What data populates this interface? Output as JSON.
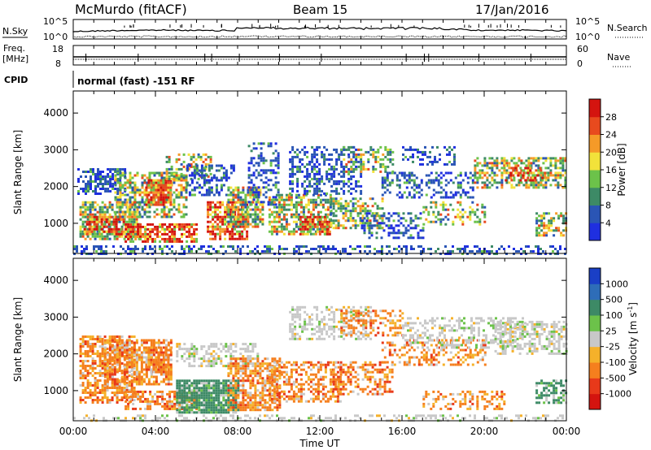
{
  "header": {
    "station": "McMurdo (fitACF)",
    "beam": "Beam 15",
    "date": "17/Jan/2016"
  },
  "summary_panels": {
    "nsky_label": "N.Sky",
    "nsky_ticks": [
      "10^5",
      "10^0"
    ],
    "nsearch_label": "N.Search",
    "nsearch_ticks": [
      "10^5",
      "10^0"
    ],
    "freq_label": "Freq.",
    "freq_unit": "[MHz]",
    "freq_ticks": [
      "18",
      "8"
    ],
    "nave_label": "Nave",
    "nave_ticks": [
      "60",
      "0"
    ],
    "cpid_label": "CPID",
    "cpid_text": "normal (fast) -151 RF"
  },
  "chart_data": [
    {
      "type": "heatmap",
      "name": "power-panel",
      "ylabel": "Slant Range [km]",
      "yticks": [
        "1000",
        "2000",
        "3000",
        "4000"
      ],
      "ylim": [
        180,
        4600
      ],
      "colorbar_label": "Power [dB]",
      "colorbar_ticks": [
        "4",
        "8",
        "12",
        "16",
        "20",
        "24",
        "28"
      ],
      "colors": [
        "#1f2fe0",
        "#2a55b5",
        "#3d8a66",
        "#6cc24a",
        "#f2e23a",
        "#f59a28",
        "#e84a1e",
        "#d4140f"
      ]
    },
    {
      "type": "heatmap",
      "name": "velocity-panel",
      "ylabel": "Slant Range [km]",
      "yticks": [
        "1000",
        "2000",
        "3000",
        "4000"
      ],
      "ylim": [
        180,
        4600
      ],
      "xlabel": "Time UT",
      "xticks": [
        "00:00",
        "04:00",
        "08:00",
        "12:00",
        "16:00",
        "20:00",
        "00:00"
      ],
      "colorbar_label": "Velocity [m s^-1]",
      "colorbar_ticks": [
        "1000",
        "500",
        "100",
        "25",
        "-25",
        "-100",
        "-500",
        "-1000"
      ],
      "colors": [
        "#1a3fc6",
        "#2e6db8",
        "#3d8a66",
        "#6cc24a",
        "#c8c8c8",
        "#f5b12a",
        "#f57f1e",
        "#e8391a",
        "#d4140f"
      ]
    }
  ]
}
